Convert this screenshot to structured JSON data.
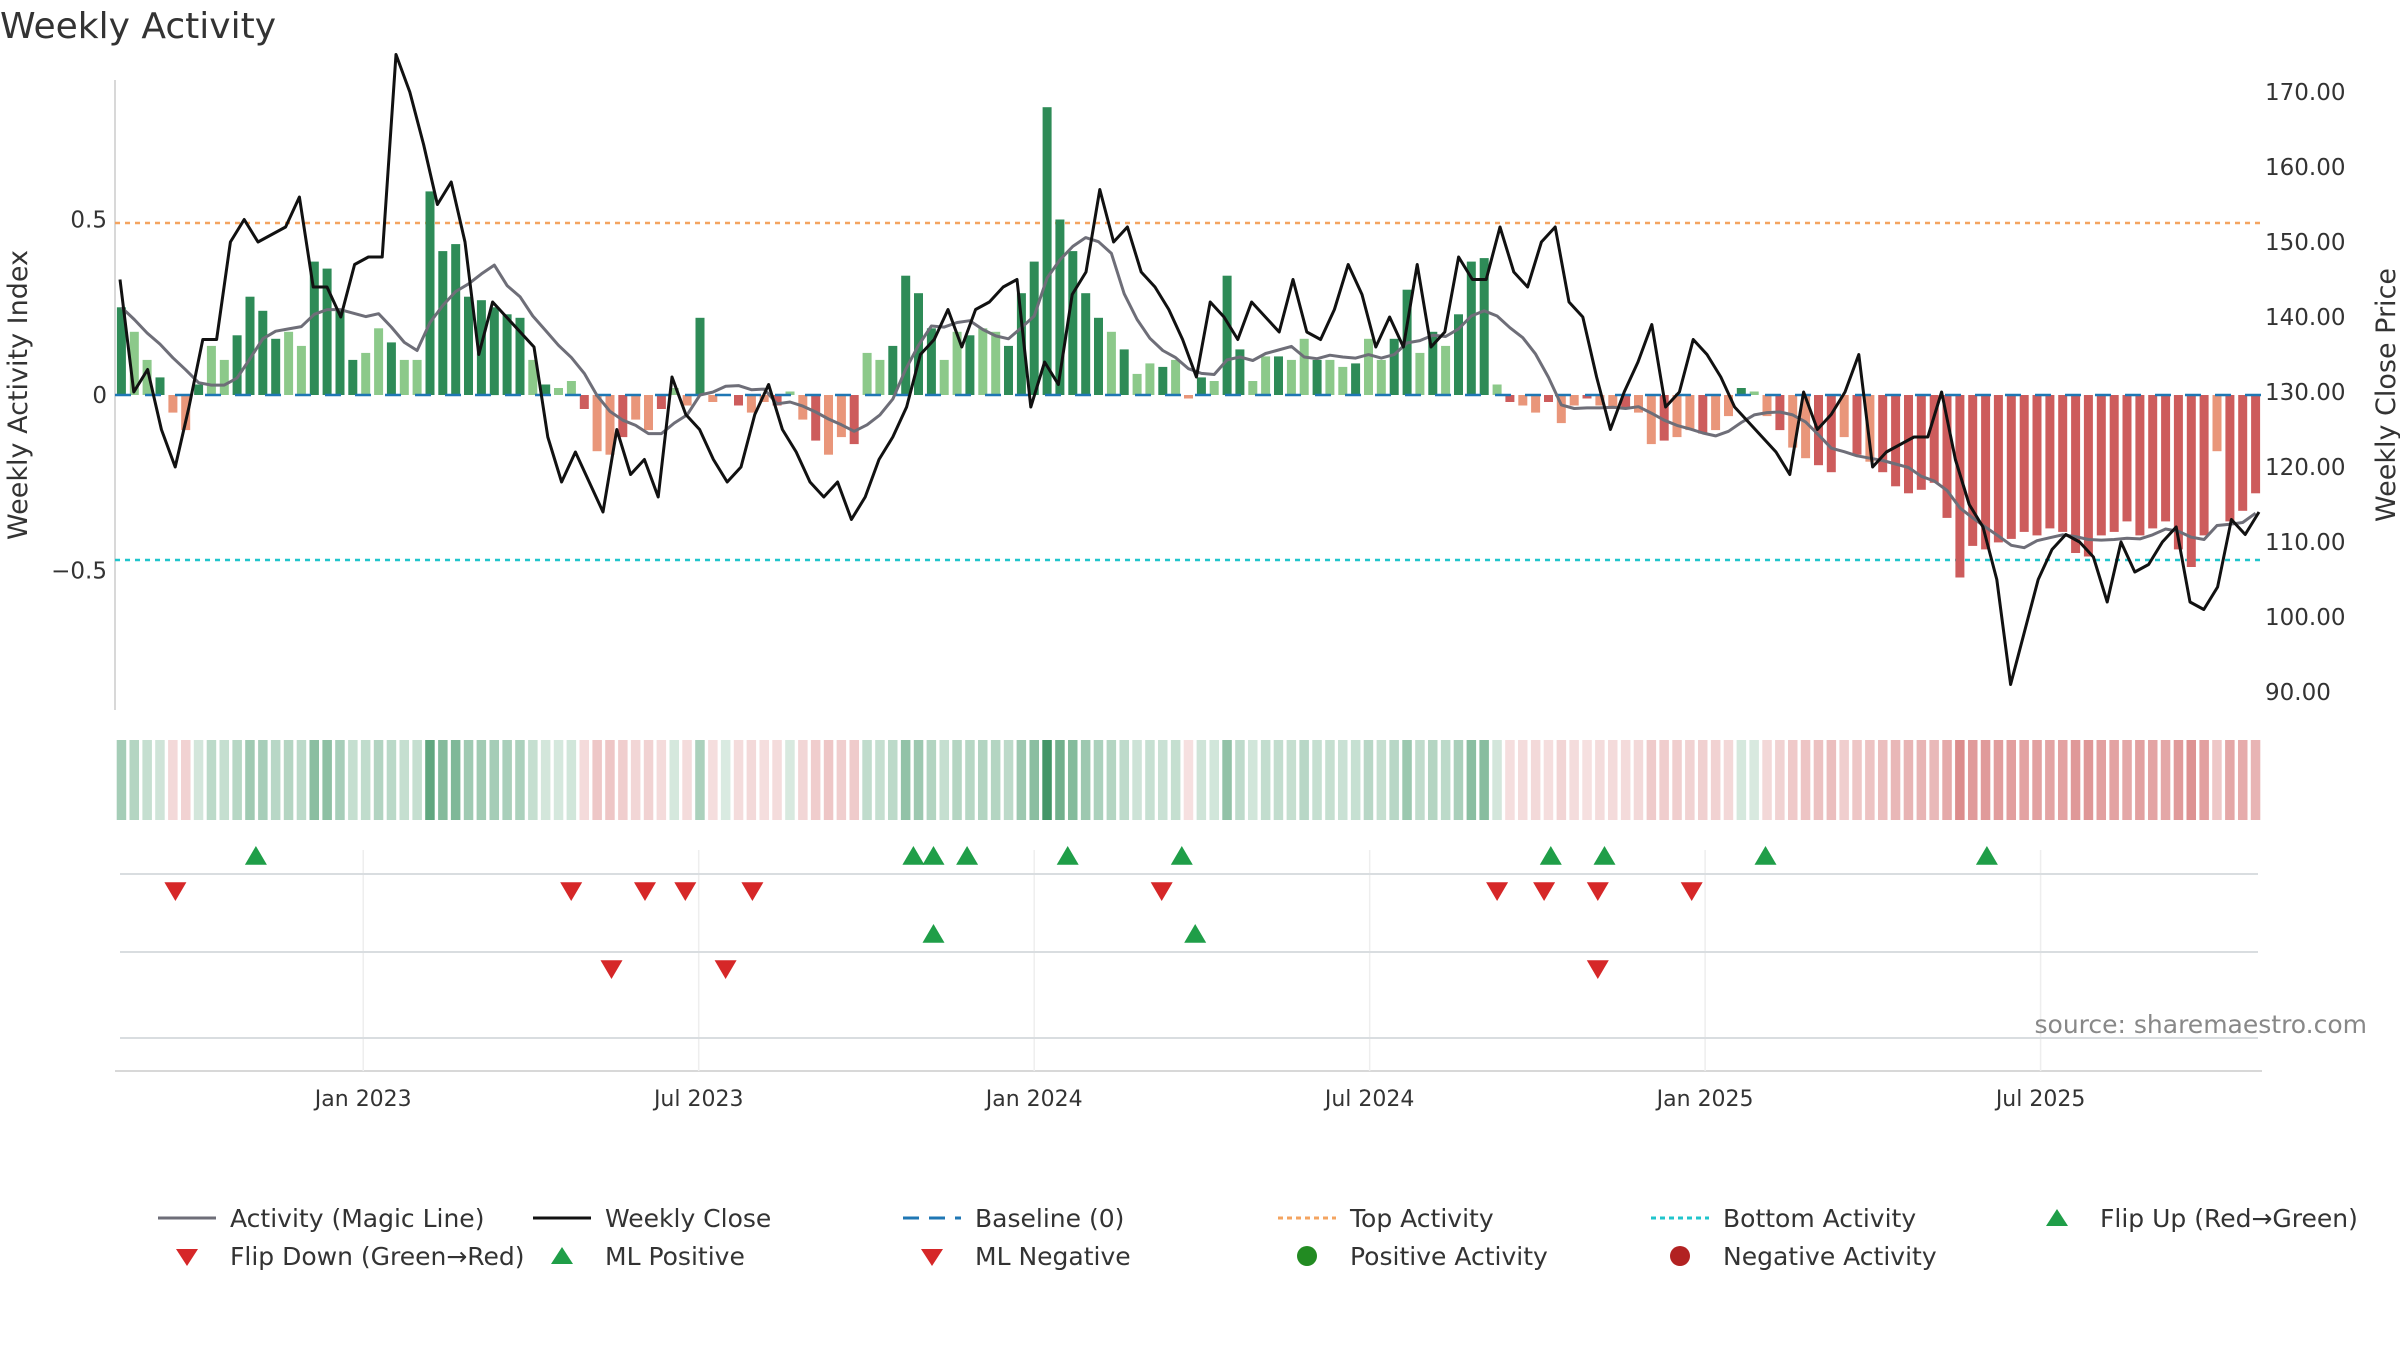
{
  "chart_data": {
    "type": "bar",
    "title": "Weekly Activity",
    "ylabel": "Weekly Activity Index",
    "y2label": "Weekly Close Price",
    "ylim": [
      -0.93,
      0.9
    ],
    "y2lim": [
      88,
      172
    ],
    "yticks": [
      0.5,
      0,
      -0.5
    ],
    "ytick_labels": [
      "0.5",
      "0",
      "−0.5"
    ],
    "y2ticks": [
      170,
      160,
      150,
      140,
      130,
      120,
      110,
      100,
      90
    ],
    "y2tick_labels": [
      "170.00",
      "160.00",
      "150.00",
      "140.00",
      "130.00",
      "120.00",
      "110.00",
      "100.00",
      "90.00"
    ],
    "xlim": [
      2022.63,
      2025.83
    ],
    "xticks": [
      2023.0,
      2023.5,
      2024.0,
      2024.5,
      2025.0,
      2025.5
    ],
    "xtick_labels": [
      "Jan 2023",
      "Jul 2023",
      "Jan 2024",
      "Jul 2024",
      "Jan 2025",
      "Jul 2025"
    ],
    "top_activity": 0.49,
    "bottom_activity": -0.47,
    "baseline": 0,
    "activity_keyframes": [
      [
        0,
        0.25
      ],
      [
        1,
        0.18
      ],
      [
        2,
        0.1
      ],
      [
        3,
        0.05
      ],
      [
        4,
        -0.05
      ],
      [
        5,
        -0.1
      ],
      [
        6,
        0.03
      ],
      [
        7,
        0.14
      ],
      [
        8,
        0.1
      ],
      [
        9,
        0.17
      ],
      [
        10,
        0.28
      ],
      [
        11,
        0.24
      ],
      [
        12,
        0.16
      ],
      [
        13,
        0.18
      ],
      [
        14,
        0.14
      ],
      [
        15,
        0.38
      ],
      [
        16,
        0.36
      ],
      [
        17,
        0.24
      ],
      [
        18,
        0.1
      ],
      [
        19,
        0.12
      ],
      [
        20,
        0.19
      ],
      [
        21,
        0.15
      ],
      [
        22,
        0.1
      ],
      [
        23,
        0.1
      ],
      [
        24,
        0.58
      ],
      [
        25,
        0.41
      ],
      [
        26,
        0.43
      ],
      [
        27,
        0.28
      ],
      [
        28,
        0.27
      ],
      [
        29,
        0.25
      ],
      [
        30,
        0.23
      ],
      [
        31,
        0.22
      ],
      [
        32,
        0.1
      ],
      [
        33,
        0.03
      ],
      [
        34,
        0.02
      ],
      [
        35,
        0.04
      ],
      [
        36,
        -0.04
      ],
      [
        37,
        -0.16
      ],
      [
        38,
        -0.17
      ],
      [
        39,
        -0.12
      ],
      [
        40,
        -0.07
      ],
      [
        41,
        -0.1
      ],
      [
        42,
        -0.04
      ],
      [
        43,
        0.02
      ],
      [
        44,
        -0.03
      ],
      [
        45,
        0.22
      ],
      [
        46,
        -0.02
      ],
      [
        47,
        0.0
      ],
      [
        48,
        -0.03
      ],
      [
        49,
        -0.05
      ],
      [
        50,
        -0.02
      ],
      [
        51,
        -0.03
      ],
      [
        52,
        0.01
      ],
      [
        53,
        -0.07
      ],
      [
        54,
        -0.13
      ],
      [
        55,
        -0.17
      ],
      [
        56,
        -0.12
      ],
      [
        57,
        -0.14
      ],
      [
        58,
        0.12
      ],
      [
        59,
        0.1
      ],
      [
        60,
        0.14
      ],
      [
        61,
        0.34
      ],
      [
        62,
        0.29
      ],
      [
        63,
        0.19
      ],
      [
        64,
        0.1
      ],
      [
        65,
        0.18
      ],
      [
        66,
        0.17
      ],
      [
        67,
        0.19
      ],
      [
        68,
        0.18
      ],
      [
        69,
        0.14
      ],
      [
        70,
        0.29
      ],
      [
        71,
        0.38
      ],
      [
        72,
        0.82
      ],
      [
        73,
        0.5
      ],
      [
        74,
        0.41
      ],
      [
        75,
        0.29
      ],
      [
        76,
        0.22
      ],
      [
        77,
        0.18
      ],
      [
        78,
        0.13
      ],
      [
        79,
        0.06
      ],
      [
        80,
        0.09
      ],
      [
        81,
        0.08
      ],
      [
        82,
        0.1
      ],
      [
        83,
        -0.01
      ],
      [
        84,
        0.05
      ],
      [
        85,
        0.04
      ],
      [
        86,
        0.34
      ],
      [
        87,
        0.13
      ],
      [
        88,
        0.04
      ],
      [
        89,
        0.11
      ],
      [
        90,
        0.11
      ],
      [
        91,
        0.1
      ],
      [
        92,
        0.16
      ],
      [
        93,
        0.1
      ],
      [
        94,
        0.1
      ],
      [
        95,
        0.08
      ],
      [
        96,
        0.09
      ],
      [
        97,
        0.16
      ],
      [
        98,
        0.1
      ],
      [
        99,
        0.16
      ],
      [
        100,
        0.3
      ],
      [
        101,
        0.12
      ],
      [
        102,
        0.18
      ],
      [
        103,
        0.14
      ],
      [
        104,
        0.23
      ],
      [
        105,
        0.38
      ],
      [
        106,
        0.39
      ],
      [
        107,
        0.03
      ],
      [
        108,
        -0.02
      ],
      [
        109,
        -0.03
      ],
      [
        110,
        -0.05
      ],
      [
        111,
        -0.02
      ],
      [
        112,
        -0.08
      ],
      [
        113,
        -0.03
      ],
      [
        114,
        -0.01
      ],
      [
        115,
        -0.03
      ],
      [
        116,
        -0.04
      ],
      [
        117,
        -0.04
      ],
      [
        118,
        -0.05
      ],
      [
        119,
        -0.14
      ],
      [
        120,
        -0.13
      ],
      [
        121,
        -0.12
      ],
      [
        122,
        -0.1
      ],
      [
        123,
        -0.11
      ],
      [
        124,
        -0.1
      ],
      [
        125,
        -0.06
      ],
      [
        126,
        0.02
      ],
      [
        127,
        0.01
      ],
      [
        128,
        -0.06
      ],
      [
        129,
        -0.1
      ],
      [
        130,
        -0.15
      ],
      [
        131,
        -0.18
      ],
      [
        132,
        -0.2
      ],
      [
        133,
        -0.22
      ],
      [
        134,
        -0.12
      ],
      [
        135,
        -0.17
      ],
      [
        136,
        -0.19
      ],
      [
        137,
        -0.22
      ],
      [
        138,
        -0.26
      ],
      [
        139,
        -0.28
      ],
      [
        140,
        -0.27
      ],
      [
        141,
        -0.25
      ],
      [
        142,
        -0.35
      ],
      [
        143,
        -0.52
      ],
      [
        144,
        -0.43
      ],
      [
        145,
        -0.44
      ],
      [
        146,
        -0.42
      ],
      [
        147,
        -0.41
      ],
      [
        148,
        -0.39
      ],
      [
        149,
        -0.4
      ],
      [
        150,
        -0.38
      ],
      [
        151,
        -0.39
      ],
      [
        152,
        -0.45
      ],
      [
        153,
        -0.46
      ],
      [
        154,
        -0.4
      ],
      [
        155,
        -0.39
      ],
      [
        156,
        -0.36
      ],
      [
        157,
        -0.4
      ],
      [
        158,
        -0.38
      ],
      [
        159,
        -0.36
      ],
      [
        160,
        -0.44
      ],
      [
        161,
        -0.49
      ],
      [
        162,
        -0.4
      ],
      [
        163,
        -0.16
      ],
      [
        164,
        -0.36
      ],
      [
        165,
        -0.33
      ],
      [
        166,
        -0.28
      ]
    ],
    "close_keyframes": [
      [
        0,
        145
      ],
      [
        1,
        130
      ],
      [
        2,
        133
      ],
      [
        3,
        125
      ],
      [
        4,
        120
      ],
      [
        5,
        128
      ],
      [
        6,
        137
      ],
      [
        7,
        137
      ],
      [
        8,
        150
      ],
      [
        9,
        153
      ],
      [
        10,
        150
      ],
      [
        11,
        151
      ],
      [
        12,
        152
      ],
      [
        13,
        156
      ],
      [
        14,
        144
      ],
      [
        15,
        144
      ],
      [
        16,
        140
      ],
      [
        17,
        147
      ],
      [
        18,
        148
      ],
      [
        19,
        148
      ],
      [
        20,
        175
      ],
      [
        21,
        170
      ],
      [
        22,
        163
      ],
      [
        23,
        155
      ],
      [
        24,
        158
      ],
      [
        25,
        150
      ],
      [
        26,
        135
      ],
      [
        27,
        142
      ],
      [
        28,
        140
      ],
      [
        29,
        138
      ],
      [
        30,
        136
      ],
      [
        31,
        124
      ],
      [
        32,
        118
      ],
      [
        33,
        122
      ],
      [
        34,
        118
      ],
      [
        35,
        114
      ],
      [
        36,
        125
      ],
      [
        37,
        119
      ],
      [
        38,
        121
      ],
      [
        39,
        116
      ],
      [
        40,
        132
      ],
      [
        41,
        127
      ],
      [
        42,
        125
      ],
      [
        43,
        121
      ],
      [
        44,
        118
      ],
      [
        45,
        120
      ],
      [
        46,
        127
      ],
      [
        47,
        131
      ],
      [
        48,
        125
      ],
      [
        49,
        122
      ],
      [
        50,
        118
      ],
      [
        51,
        116
      ],
      [
        52,
        118
      ],
      [
        53,
        113
      ],
      [
        54,
        116
      ],
      [
        55,
        121
      ],
      [
        56,
        124
      ],
      [
        57,
        128
      ],
      [
        58,
        135
      ],
      [
        59,
        137
      ],
      [
        60,
        141
      ],
      [
        61,
        136
      ],
      [
        62,
        141
      ],
      [
        63,
        142
      ],
      [
        64,
        144
      ],
      [
        65,
        145
      ],
      [
        66,
        128
      ],
      [
        67,
        134
      ],
      [
        68,
        131
      ],
      [
        69,
        143
      ],
      [
        70,
        146
      ],
      [
        71,
        157
      ],
      [
        72,
        150
      ],
      [
        73,
        152
      ],
      [
        74,
        146
      ],
      [
        75,
        144
      ],
      [
        76,
        141
      ],
      [
        77,
        137
      ],
      [
        78,
        132
      ],
      [
        79,
        142
      ],
      [
        80,
        140
      ],
      [
        81,
        137
      ],
      [
        82,
        142
      ],
      [
        83,
        140
      ],
      [
        84,
        138
      ],
      [
        85,
        145
      ],
      [
        86,
        138
      ],
      [
        87,
        137
      ],
      [
        88,
        141
      ],
      [
        89,
        147
      ],
      [
        90,
        143
      ],
      [
        91,
        136
      ],
      [
        92,
        140
      ],
      [
        93,
        136
      ],
      [
        94,
        147
      ],
      [
        95,
        136
      ],
      [
        96,
        138
      ],
      [
        97,
        148
      ],
      [
        98,
        145
      ],
      [
        99,
        145
      ],
      [
        100,
        152
      ],
      [
        101,
        146
      ],
      [
        102,
        144
      ],
      [
        103,
        150
      ],
      [
        104,
        152
      ],
      [
        105,
        142
      ],
      [
        106,
        140
      ],
      [
        107,
        132
      ],
      [
        108,
        125
      ],
      [
        109,
        130
      ],
      [
        110,
        134
      ],
      [
        111,
        139
      ],
      [
        112,
        128
      ],
      [
        113,
        130
      ],
      [
        114,
        137
      ],
      [
        115,
        135
      ],
      [
        116,
        132
      ],
      [
        117,
        128
      ],
      [
        118,
        126
      ],
      [
        119,
        124
      ],
      [
        120,
        122
      ],
      [
        121,
        119
      ],
      [
        122,
        130
      ],
      [
        123,
        125
      ],
      [
        124,
        127
      ],
      [
        125,
        130
      ],
      [
        126,
        135
      ],
      [
        127,
        120
      ],
      [
        128,
        122
      ],
      [
        129,
        123
      ],
      [
        130,
        124
      ],
      [
        131,
        124
      ],
      [
        132,
        130
      ],
      [
        133,
        121
      ],
      [
        134,
        115
      ],
      [
        135,
        112
      ],
      [
        136,
        105
      ],
      [
        137,
        91
      ],
      [
        138,
        98
      ],
      [
        139,
        105
      ],
      [
        140,
        109
      ],
      [
        141,
        111
      ],
      [
        142,
        110
      ],
      [
        143,
        108
      ],
      [
        144,
        102
      ],
      [
        145,
        110
      ],
      [
        146,
        106
      ],
      [
        147,
        107
      ],
      [
        148,
        110
      ],
      [
        149,
        112
      ],
      [
        150,
        102
      ],
      [
        151,
        101
      ],
      [
        152,
        104
      ],
      [
        153,
        113
      ],
      [
        154,
        111
      ],
      [
        155,
        114
      ]
    ],
    "marker_rows": [
      {
        "flips_up": [
          2022.84,
          2023.82,
          2023.85,
          2023.9,
          2024.05,
          2024.22,
          2024.77,
          2024.85,
          2025.09,
          2025.42
        ],
        "flips_down": [
          2022.72,
          2023.31,
          2023.42,
          2023.48,
          2023.58,
          2024.19,
          2024.69,
          2024.76,
          2024.84,
          2024.98
        ]
      },
      {
        "ml_positive": [
          2023.85,
          2024.24
        ],
        "ml_negative": [
          2023.37,
          2023.54,
          2024.84
        ]
      },
      {}
    ],
    "legend": [
      {
        "key": "magic",
        "label": "Activity (Magic Line)"
      },
      {
        "key": "close",
        "label": "Weekly Close"
      },
      {
        "key": "baseline",
        "label": "Baseline (0)"
      },
      {
        "key": "top",
        "label": "Top Activity"
      },
      {
        "key": "bottom",
        "label": "Bottom Activity"
      },
      {
        "key": "flipup",
        "label": "Flip Up (Red→Green)"
      },
      {
        "key": "flipdown",
        "label": "Flip Down (Green→Red)"
      },
      {
        "key": "mlpos",
        "label": "ML Positive"
      },
      {
        "key": "mlneg",
        "label": "ML Negative"
      },
      {
        "key": "posact",
        "label": "Positive Activity"
      },
      {
        "key": "negact",
        "label": "Negative Activity"
      }
    ],
    "source": "source: sharemaestro.com",
    "colors": {
      "pos_dark": "#2e8b57",
      "pos_light": "#8cc98a",
      "neg_dark": "#cd5c5c",
      "neg_light": "#e9967a",
      "magic": "#6e6e78",
      "close": "#111111",
      "baseline": "#1f77b4",
      "top": "#f4a460",
      "bottom": "#20c5cc",
      "up_marker": "#1f9e48",
      "down_marker": "#d62728",
      "pos_dot": "#228b22",
      "neg_dot": "#b22222"
    }
  }
}
